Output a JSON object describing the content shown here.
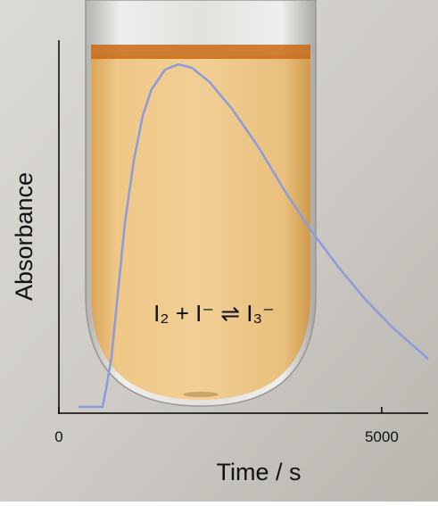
{
  "chart_data": {
    "type": "line",
    "xlabel": "Time / s",
    "ylabel": "Absorbance",
    "annotation": "I₂ + I⁻ ⇌ I₃⁻",
    "x": [
      304,
      677,
      746,
      815,
      912,
      1022,
      1160,
      1298,
      1436,
      1644,
      1851,
      2058,
      2334,
      2680,
      3094,
      3508,
      3923,
      4337,
      4751,
      5166,
      5718
    ],
    "values": [
      0.017,
      0.017,
      0.079,
      0.151,
      0.318,
      0.51,
      0.677,
      0.797,
      0.868,
      0.921,
      0.935,
      0.926,
      0.888,
      0.816,
      0.713,
      0.593,
      0.486,
      0.39,
      0.304,
      0.23,
      0.146
    ],
    "color": "#8c9bdc",
    "xlim": [
      0,
      5720
    ],
    "ylim": [
      0,
      1
    ],
    "xticks": [
      0,
      5000
    ]
  }
}
